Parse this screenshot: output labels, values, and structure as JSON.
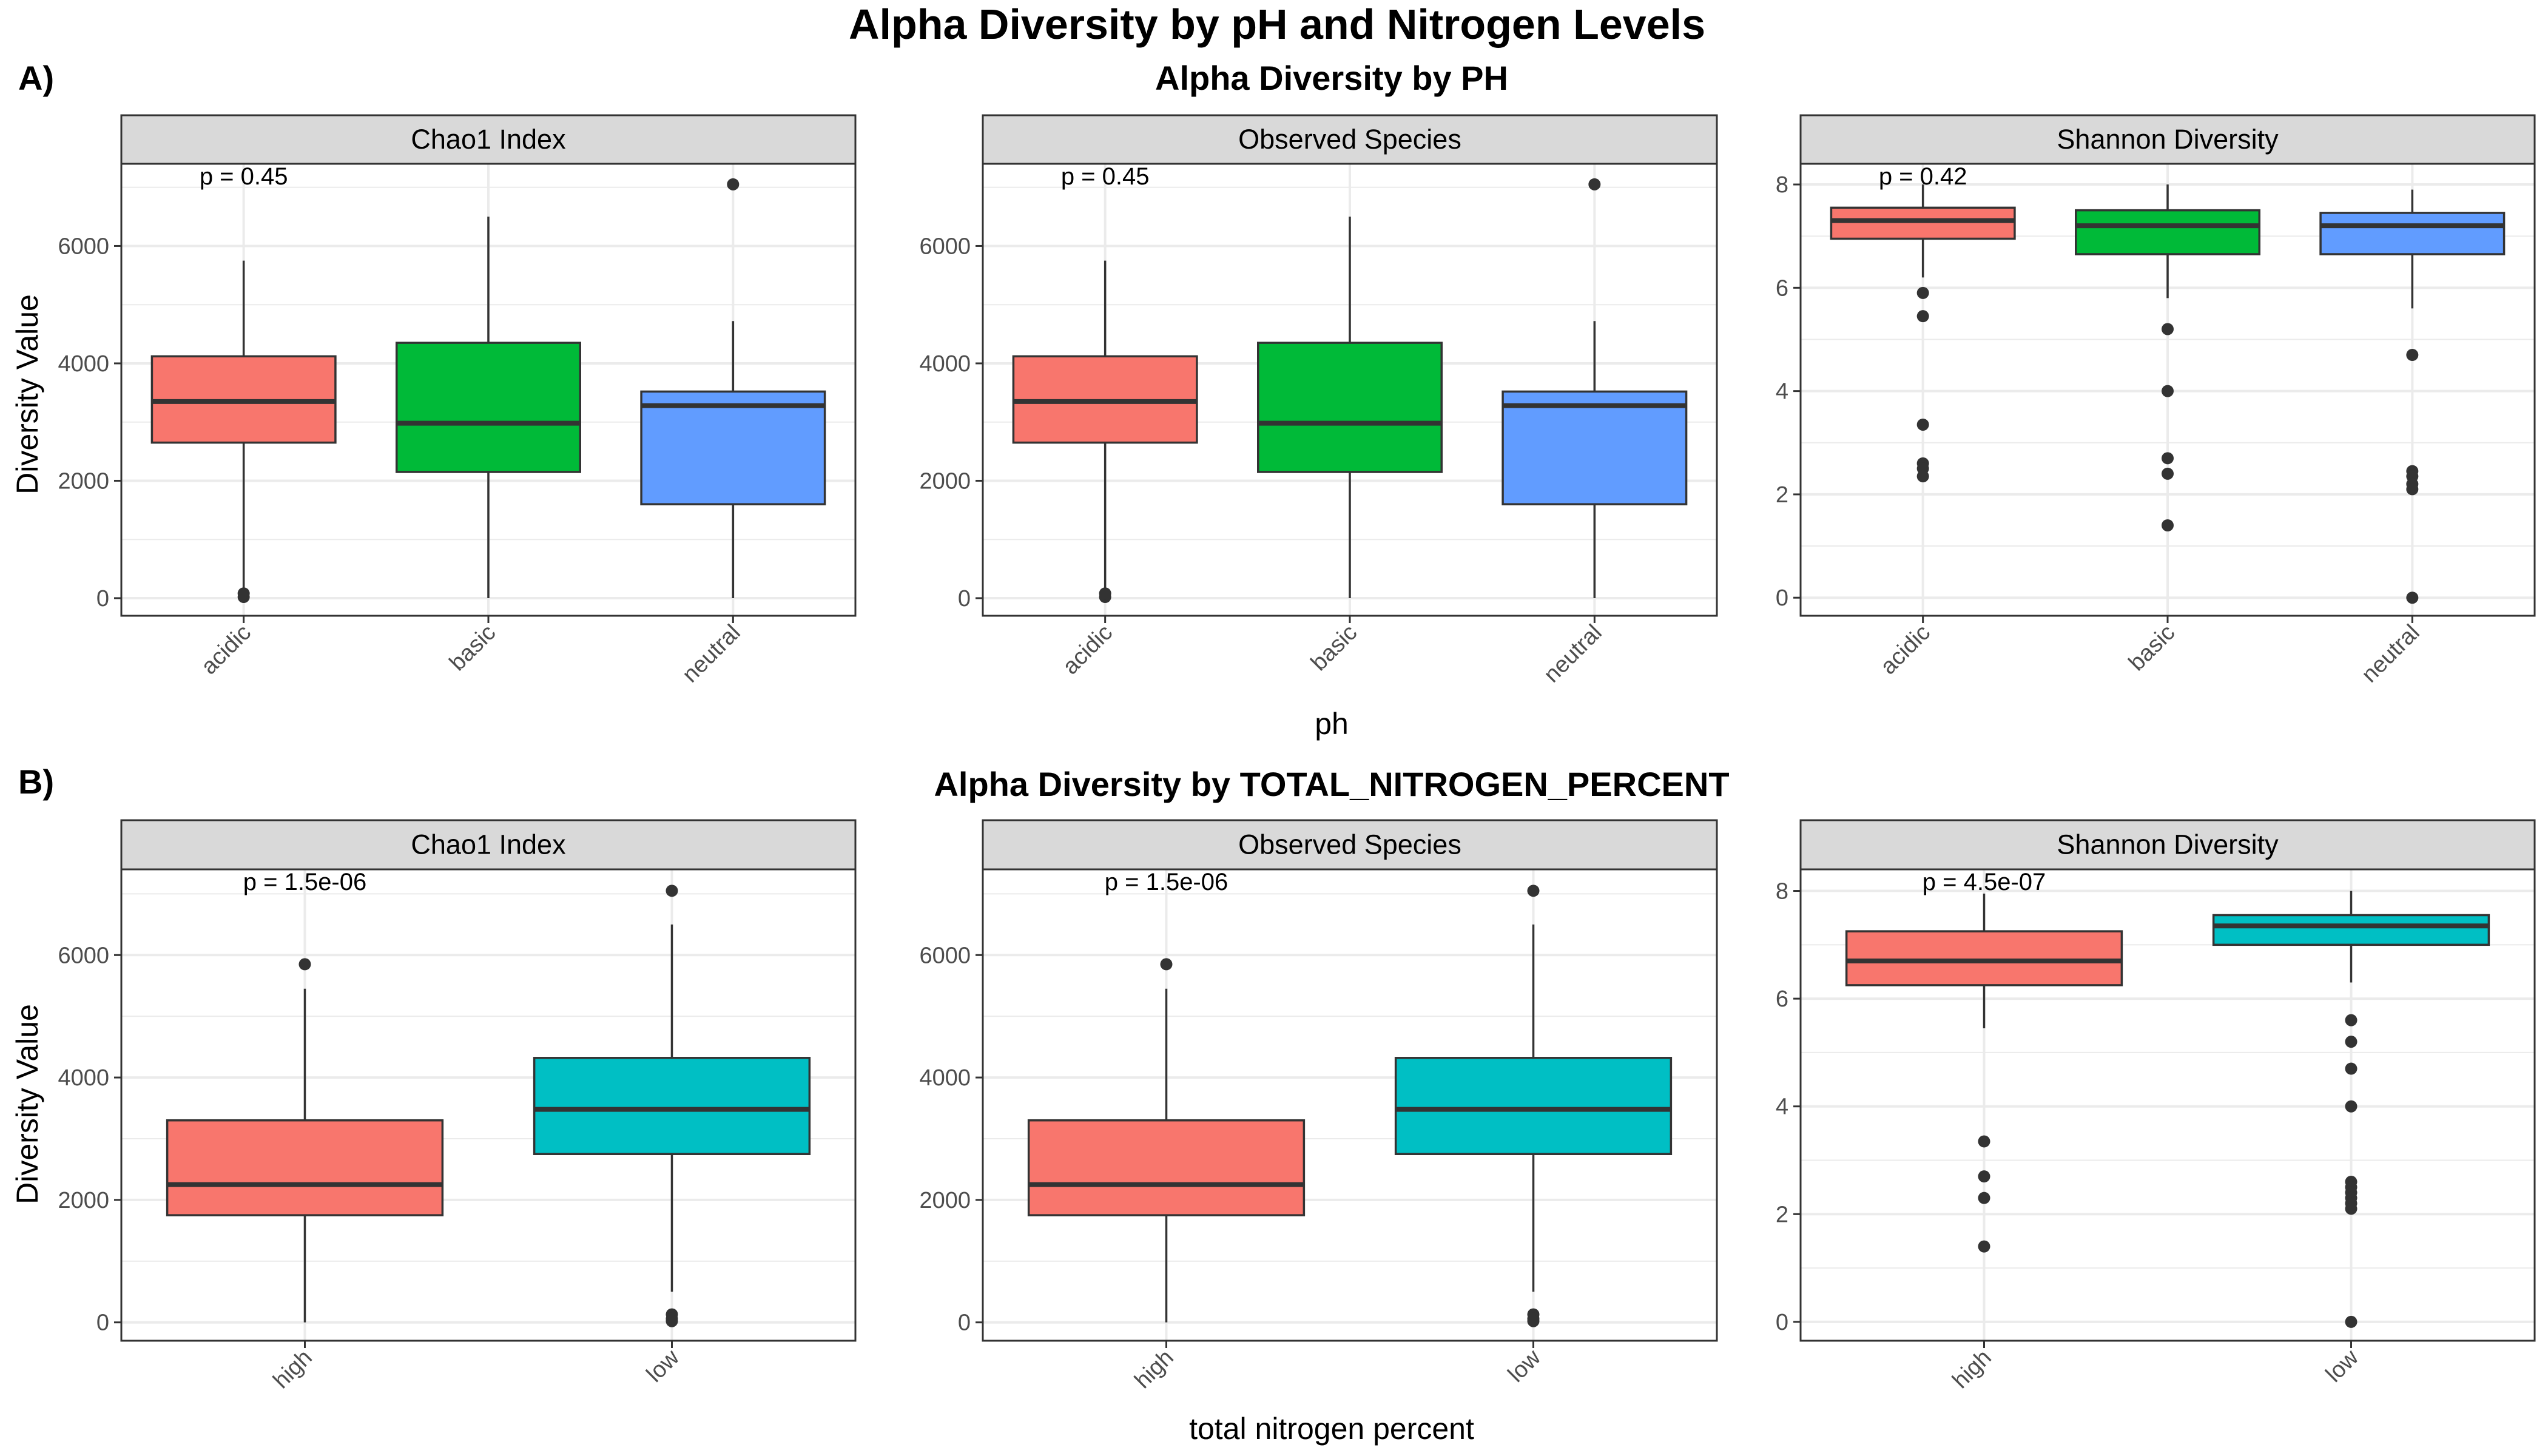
{
  "main_title": "Alpha Diversity by pH and Nitrogen Levels",
  "y_axis_title": "Diversity Value",
  "colors": {
    "acidic": "#F8766D",
    "basic": "#00BA38",
    "neutral": "#619CFF",
    "high": "#F8766D",
    "low": "#00BFC4",
    "strip_bg": "#D9D9D9",
    "grid": "#EBEBEB",
    "box_line": "#333333"
  },
  "sections": [
    {
      "tag": "A)",
      "title": "Alpha Diversity by PH",
      "x_axis_title": "ph",
      "categories": [
        "acidic",
        "basic",
        "neutral"
      ]
    },
    {
      "tag": "B)",
      "title": "Alpha Diversity by TOTAL_NITROGEN_PERCENT",
      "x_axis_title": "total nitrogen percent",
      "categories": [
        "high",
        "low"
      ]
    }
  ],
  "chart_data": [
    {
      "type": "box",
      "section": "A)",
      "facet": "Chao1 Index",
      "p_value": "p = 0.45",
      "categories": [
        "acidic",
        "basic",
        "neutral"
      ],
      "ylim": [
        -300,
        7400
      ],
      "y_ticks": [
        0,
        2000,
        4000,
        6000
      ],
      "boxes": [
        {
          "q1": 2650,
          "median": 3350,
          "q3": 4120,
          "whisker_low": 0,
          "whisker_high": 5750,
          "outliers": [
            20,
            80
          ]
        },
        {
          "q1": 2150,
          "median": 2980,
          "q3": 4350,
          "whisker_low": 0,
          "whisker_high": 6500,
          "outliers": []
        },
        {
          "q1": 1600,
          "median": 3280,
          "q3": 3520,
          "whisker_low": 0,
          "whisker_high": 4720,
          "outliers": [
            7050
          ]
        }
      ]
    },
    {
      "type": "box",
      "section": "A)",
      "facet": "Observed Species",
      "p_value": "p = 0.45",
      "categories": [
        "acidic",
        "basic",
        "neutral"
      ],
      "ylim": [
        -300,
        7400
      ],
      "y_ticks": [
        0,
        2000,
        4000,
        6000
      ],
      "boxes": [
        {
          "q1": 2650,
          "median": 3350,
          "q3": 4120,
          "whisker_low": 0,
          "whisker_high": 5750,
          "outliers": [
            20,
            80
          ]
        },
        {
          "q1": 2150,
          "median": 2980,
          "q3": 4350,
          "whisker_low": 0,
          "whisker_high": 6500,
          "outliers": []
        },
        {
          "q1": 1600,
          "median": 3280,
          "q3": 3520,
          "whisker_low": 0,
          "whisker_high": 4720,
          "outliers": [
            7050
          ]
        }
      ]
    },
    {
      "type": "box",
      "section": "A)",
      "facet": "Shannon Diversity",
      "p_value": "p = 0.42",
      "categories": [
        "acidic",
        "basic",
        "neutral"
      ],
      "ylim": [
        -0.35,
        8.4
      ],
      "y_ticks": [
        0,
        2,
        4,
        6,
        8
      ],
      "boxes": [
        {
          "q1": 6.95,
          "median": 7.3,
          "q3": 7.55,
          "whisker_low": 6.2,
          "whisker_high": 8.0,
          "outliers": [
            5.9,
            5.45,
            3.35,
            2.6,
            2.5,
            2.35
          ]
        },
        {
          "q1": 6.65,
          "median": 7.2,
          "q3": 7.5,
          "whisker_low": 5.8,
          "whisker_high": 8.0,
          "outliers": [
            5.2,
            4.0,
            2.7,
            2.4,
            1.4
          ]
        },
        {
          "q1": 6.65,
          "median": 7.2,
          "q3": 7.45,
          "whisker_low": 5.6,
          "whisker_high": 7.9,
          "outliers": [
            4.7,
            2.45,
            2.35,
            2.2,
            2.1,
            0.0
          ]
        }
      ]
    },
    {
      "type": "box",
      "section": "B)",
      "facet": "Chao1 Index",
      "p_value": "p = 1.5e-06",
      "categories": [
        "high",
        "low"
      ],
      "ylim": [
        -300,
        7400
      ],
      "y_ticks": [
        0,
        2000,
        4000,
        6000
      ],
      "boxes": [
        {
          "q1": 1750,
          "median": 2250,
          "q3": 3300,
          "whisker_low": 0,
          "whisker_high": 5450,
          "outliers": [
            5850
          ]
        },
        {
          "q1": 2750,
          "median": 3480,
          "q3": 4320,
          "whisker_low": 500,
          "whisker_high": 6500,
          "outliers": [
            7050,
            130,
            60,
            20
          ]
        }
      ]
    },
    {
      "type": "box",
      "section": "B)",
      "facet": "Observed Species",
      "p_value": "p = 1.5e-06",
      "categories": [
        "high",
        "low"
      ],
      "ylim": [
        -300,
        7400
      ],
      "y_ticks": [
        0,
        2000,
        4000,
        6000
      ],
      "boxes": [
        {
          "q1": 1750,
          "median": 2250,
          "q3": 3300,
          "whisker_low": 0,
          "whisker_high": 5450,
          "outliers": [
            5850
          ]
        },
        {
          "q1": 2750,
          "median": 3480,
          "q3": 4320,
          "whisker_low": 500,
          "whisker_high": 6500,
          "outliers": [
            7050,
            130,
            60,
            20
          ]
        }
      ]
    },
    {
      "type": "box",
      "section": "B)",
      "facet": "Shannon Diversity",
      "p_value": "p = 4.5e-07",
      "categories": [
        "high",
        "low"
      ],
      "ylim": [
        -0.35,
        8.4
      ],
      "y_ticks": [
        0,
        2,
        4,
        6,
        8
      ],
      "boxes": [
        {
          "q1": 6.25,
          "median": 6.7,
          "q3": 7.25,
          "whisker_low": 5.45,
          "whisker_high": 7.95,
          "outliers": [
            3.35,
            2.7,
            2.3,
            1.4
          ]
        },
        {
          "q1": 7.0,
          "median": 7.35,
          "q3": 7.55,
          "whisker_low": 6.3,
          "whisker_high": 8.0,
          "outliers": [
            5.6,
            5.2,
            4.7,
            4.0,
            2.6,
            2.5,
            2.4,
            2.3,
            2.2,
            2.1,
            0.0
          ]
        }
      ]
    }
  ]
}
